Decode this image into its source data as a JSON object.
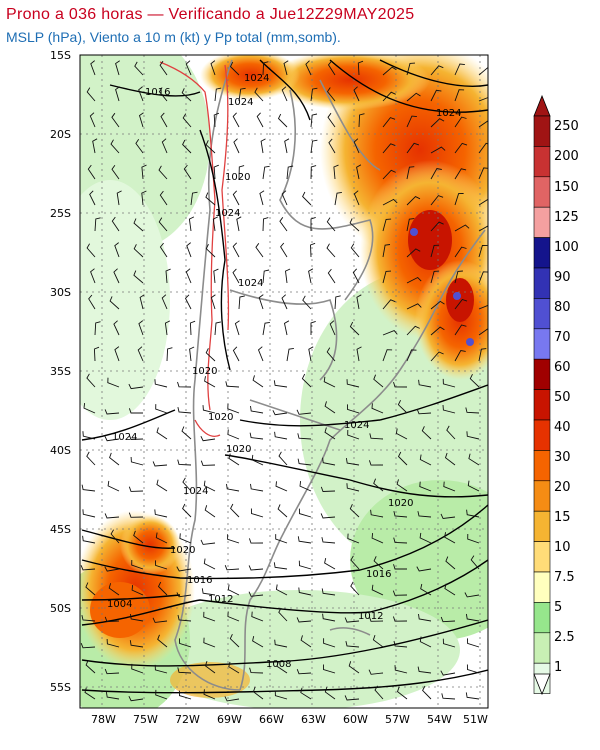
{
  "header": {
    "title": "Prono a 036 horas — Verificando a Jue12Z29MAY2025",
    "subtitle": "MSLP (hPa), Viento a 10 m (kt) y Pp total (mm,somb)."
  },
  "map": {
    "lat_labels": [
      "15S",
      "20S",
      "25S",
      "30S",
      "35S",
      "40S",
      "45S",
      "50S",
      "55S"
    ],
    "lon_labels": [
      "78W",
      "75W",
      "72W",
      "69W",
      "66W",
      "63W",
      "60W",
      "57W",
      "54W",
      "51W"
    ],
    "isobar_labels": [
      "1016",
      "1024",
      "1024",
      "1024",
      "1020",
      "1024",
      "1024",
      "1020",
      "1020",
      "1020",
      "1024",
      "1024",
      "1024",
      "1020",
      "1020",
      "1016",
      "1016",
      "1012",
      "1012",
      "1004",
      "1008"
    ]
  },
  "colorbar": {
    "levels": [
      "250",
      "200",
      "150",
      "125",
      "100",
      "90",
      "80",
      "70",
      "60",
      "50",
      "40",
      "30",
      "20",
      "15",
      "10",
      "7.5",
      "5",
      "2.5",
      "1"
    ],
    "colors": [
      "#a01414",
      "#c83232",
      "#e06464",
      "#f4a0a0",
      "#14148c",
      "#3232b4",
      "#5050d2",
      "#7878f0",
      "#a00000",
      "#c81400",
      "#e63200",
      "#f56400",
      "#f58c14",
      "#f5b432",
      "#ffdc78",
      "#ffffbe",
      "#96e68c",
      "#c8f0b4",
      "#e6fae6"
    ]
  }
}
